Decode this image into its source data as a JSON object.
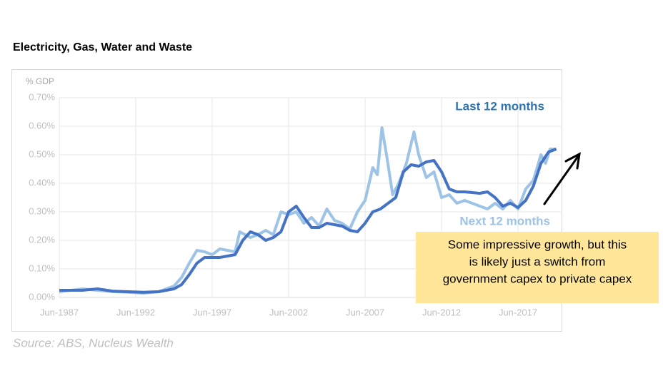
{
  "chart_data": {
    "type": "line",
    "title": "Electricity, Gas, Water and Waste",
    "y_label": "% GDP",
    "source": "Source: ABS, Nucleus Wealth",
    "annotation": [
      "Some impressive growth, but this",
      "is likely just a switch from",
      "government capex to private capex"
    ],
    "xlim": [
      1987.5,
      2020.3
    ],
    "ylim": [
      0,
      0.7
    ],
    "xticks": [
      {
        "value": 1987.5,
        "label": "Jun-1987"
      },
      {
        "value": 1992.5,
        "label": "Jun-1992"
      },
      {
        "value": 1997.5,
        "label": "Jun-1997"
      },
      {
        "value": 2002.5,
        "label": "Jun-2002"
      },
      {
        "value": 2007.5,
        "label": "Jun-2007"
      },
      {
        "value": 2012.5,
        "label": "Jun-2012"
      },
      {
        "value": 2017.5,
        "label": "Jun-2017"
      }
    ],
    "yticks": [
      {
        "value": 0,
        "label": "0.00%"
      },
      {
        "value": 0.1,
        "label": "0.10%"
      },
      {
        "value": 0.2,
        "label": "0.20%"
      },
      {
        "value": 0.3,
        "label": "0.30%"
      },
      {
        "value": 0.4,
        "label": "0.40%"
      },
      {
        "value": 0.5,
        "label": "0.50%"
      },
      {
        "value": 0.6,
        "label": "0.60%"
      },
      {
        "value": 0.7,
        "label": "0.70%"
      }
    ],
    "grid": true,
    "series": [
      {
        "name": "Last 12 months",
        "color": "#4472c4",
        "label_color": "#2e75b6",
        "x": [
          1987.5,
          1989,
          1990,
          1991,
          1992,
          1993,
          1994,
          1995,
          1995.5,
          1996,
          1996.5,
          1997,
          1998,
          1999,
          1999.5,
          2000,
          2000.5,
          2001,
          2001.5,
          2002,
          2002.5,
          2003,
          2003.5,
          2004,
          2004.5,
          2005,
          2006,
          2006.5,
          2007,
          2007.5,
          2008,
          2008.5,
          2009,
          2009.5,
          2010,
          2010.5,
          2011,
          2011.5,
          2012,
          2012.5,
          2013,
          2013.5,
          2014,
          2015,
          2015.5,
          2016,
          2016.5,
          2017,
          2017.5,
          2018,
          2018.5,
          2019,
          2019.5,
          2020
        ],
        "values": [
          0.025,
          0.025,
          0.03,
          0.022,
          0.02,
          0.018,
          0.02,
          0.03,
          0.045,
          0.08,
          0.12,
          0.14,
          0.14,
          0.15,
          0.2,
          0.23,
          0.22,
          0.2,
          0.21,
          0.23,
          0.3,
          0.32,
          0.28,
          0.245,
          0.245,
          0.26,
          0.25,
          0.235,
          0.23,
          0.26,
          0.3,
          0.31,
          0.33,
          0.35,
          0.44,
          0.465,
          0.46,
          0.475,
          0.48,
          0.44,
          0.38,
          0.37,
          0.37,
          0.365,
          0.37,
          0.35,
          0.32,
          0.33,
          0.315,
          0.34,
          0.39,
          0.47,
          0.51,
          0.52
        ]
      },
      {
        "name": "Next 12 months",
        "color": "#9dc3e6",
        "label_color": "#9dc3e6",
        "x": [
          1987.5,
          1989,
          1990,
          1991,
          1992,
          1993,
          1994,
          1995,
          1995.5,
          1996,
          1996.5,
          1997,
          1997.5,
          1998,
          1999,
          1999.3,
          2000,
          2000.5,
          2001,
          2001.5,
          2002,
          2002.5,
          2003,
          2003.5,
          2004,
          2004.5,
          2005,
          2005.5,
          2006,
          2006.5,
          2007,
          2007.5,
          2008,
          2008.3,
          2008.6,
          2008.9,
          2009.3,
          2009.7,
          2010.2,
          2010.7,
          2011,
          2011.5,
          2012,
          2012.5,
          2013,
          2013.5,
          2014,
          2015,
          2015.5,
          2016,
          2016.5,
          2017,
          2017.5,
          2018,
          2018.5,
          2019,
          2019.3,
          2019.6,
          2020
        ],
        "values": [
          0.02,
          0.03,
          0.025,
          0.02,
          0.018,
          0.015,
          0.02,
          0.04,
          0.07,
          0.12,
          0.165,
          0.16,
          0.15,
          0.17,
          0.16,
          0.23,
          0.21,
          0.22,
          0.235,
          0.22,
          0.3,
          0.29,
          0.3,
          0.26,
          0.28,
          0.25,
          0.31,
          0.27,
          0.26,
          0.24,
          0.3,
          0.34,
          0.455,
          0.43,
          0.595,
          0.5,
          0.36,
          0.4,
          0.47,
          0.58,
          0.5,
          0.42,
          0.44,
          0.35,
          0.36,
          0.33,
          0.34,
          0.32,
          0.31,
          0.33,
          0.31,
          0.34,
          0.31,
          0.38,
          0.41,
          0.5,
          0.47,
          0.52,
          0.52
        ]
      }
    ]
  }
}
